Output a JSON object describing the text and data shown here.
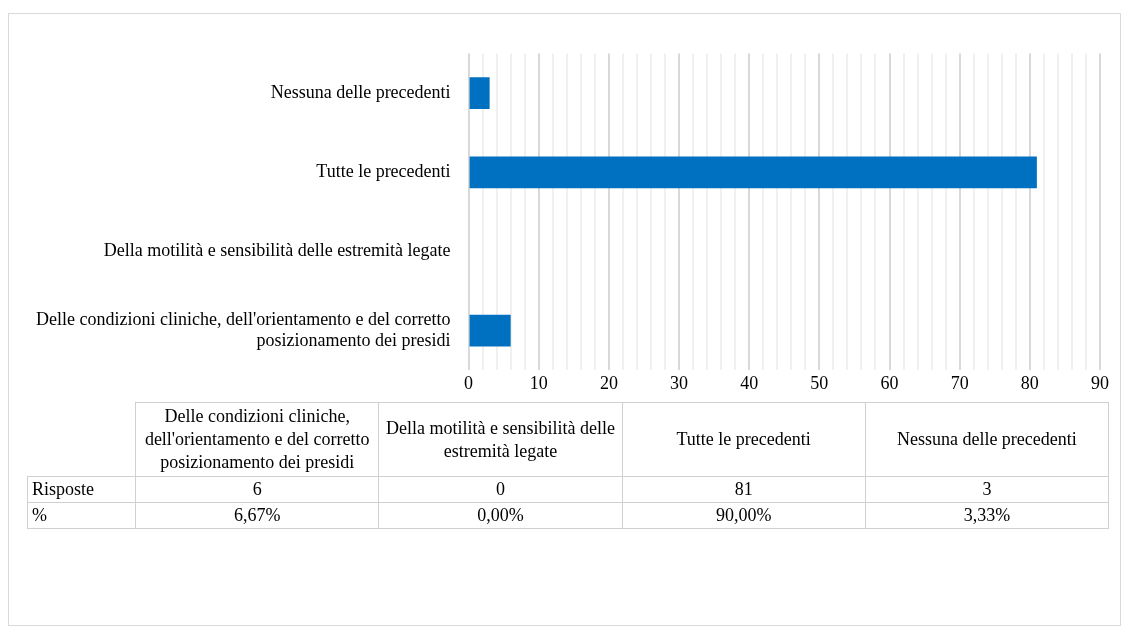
{
  "chart_data": {
    "type": "bar",
    "orientation": "horizontal",
    "categories": [
      "Nessuna delle precedenti",
      "Tutte le precedenti",
      "Della motilità e sensibilità delle estremità legate",
      "Delle condizioni cliniche, dell'orientamento e del corretto posizionamento dei presidi"
    ],
    "series": [
      {
        "color": "#0070c0",
        "values": [
          3,
          81,
          0,
          6
        ]
      }
    ],
    "xlim": [
      0,
      90
    ],
    "xticks": [
      0,
      {
        "value": 2,
        "label": null
      },
      {
        "value": 4,
        "label": null
      },
      {
        "value": 6,
        "label": null
      },
      {
        "value": 8,
        "label": null
      },
      10,
      {
        "value": 12,
        "label": null
      },
      {
        "value": 14,
        "label": null
      },
      {
        "value": 16,
        "label": null
      },
      {
        "value": 18,
        "label": null
      },
      20,
      {
        "value": 22,
        "label": null
      },
      {
        "value": 24,
        "label": null
      },
      {
        "value": 26,
        "label": null
      },
      {
        "value": 28,
        "label": null
      },
      30,
      {
        "value": 32,
        "label": null
      },
      {
        "value": 34,
        "label": null
      },
      {
        "value": 36,
        "label": null
      },
      {
        "value": 38,
        "label": null
      },
      40,
      {
        "value": 42,
        "label": null
      },
      {
        "value": 44,
        "label": null
      },
      {
        "value": 46,
        "label": null
      },
      {
        "value": 48,
        "label": null
      },
      50,
      {
        "value": 52,
        "label": null
      },
      {
        "value": 54,
        "label": null
      },
      {
        "value": 56,
        "label": null
      },
      {
        "value": 58,
        "label": null
      },
      60,
      {
        "value": 62,
        "label": null
      },
      {
        "value": 64,
        "label": null
      },
      {
        "value": 66,
        "label": null
      },
      {
        "value": 68,
        "label": null
      },
      70,
      {
        "value": 72,
        "label": null
      },
      {
        "value": 74,
        "label": null
      },
      {
        "value": 76,
        "label": null
      },
      {
        "value": 78,
        "label": null
      },
      80,
      {
        "value": 82,
        "label": null
      },
      {
        "value": 84,
        "label": null
      },
      {
        "value": 86,
        "label": null
      },
      {
        "value": 88,
        "label": null
      },
      90
    ],
    "grid": "x",
    "legend": false,
    "annotations": [
      "Risposte",
      "6",
      "0",
      "81",
      "3",
      "%",
      "6,67%",
      "0,00%",
      "90,00%",
      "3,33%"
    ]
  }
}
